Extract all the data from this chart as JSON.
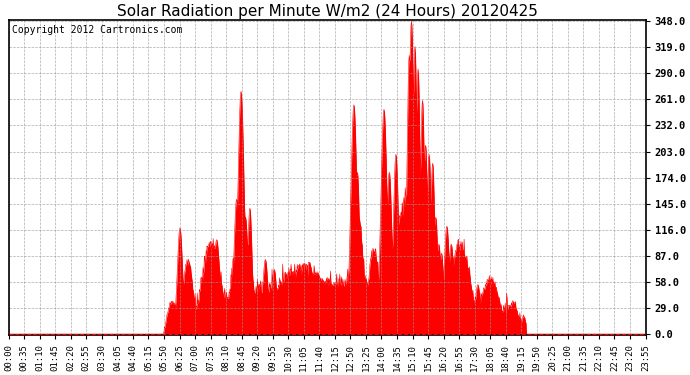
{
  "title": "Solar Radiation per Minute W/m2 (24 Hours) 20120425",
  "copyright_text": "Copyright 2012 Cartronics.com",
  "yticks": [
    0.0,
    29.0,
    58.0,
    87.0,
    116.0,
    145.0,
    174.0,
    203.0,
    232.0,
    261.0,
    290.0,
    319.0,
    348.0
  ],
  "ymax": 348.0,
  "ymin": 0.0,
  "fill_color": "#ff0000",
  "line_color": "#ff0000",
  "bg_color": "#ffffff",
  "grid_color": "#999999",
  "border_color": "#000000",
  "title_fontsize": 11,
  "copyright_fontsize": 7,
  "tick_fontsize": 6.5,
  "ytick_fontsize": 7.5,
  "dashed_line_color": "#ff0000",
  "xtick_labels": [
    "00:00",
    "00:35",
    "01:10",
    "01:45",
    "02:20",
    "02:55",
    "03:30",
    "04:05",
    "04:40",
    "05:15",
    "05:50",
    "06:25",
    "07:00",
    "07:35",
    "08:10",
    "08:45",
    "09:20",
    "09:55",
    "10:30",
    "11:05",
    "11:40",
    "12:15",
    "12:50",
    "13:25",
    "14:00",
    "14:35",
    "15:10",
    "15:45",
    "16:20",
    "16:55",
    "17:30",
    "18:05",
    "18:40",
    "19:15",
    "19:50",
    "20:25",
    "21:00",
    "21:35",
    "22:10",
    "22:45",
    "23:20",
    "23:55"
  ]
}
